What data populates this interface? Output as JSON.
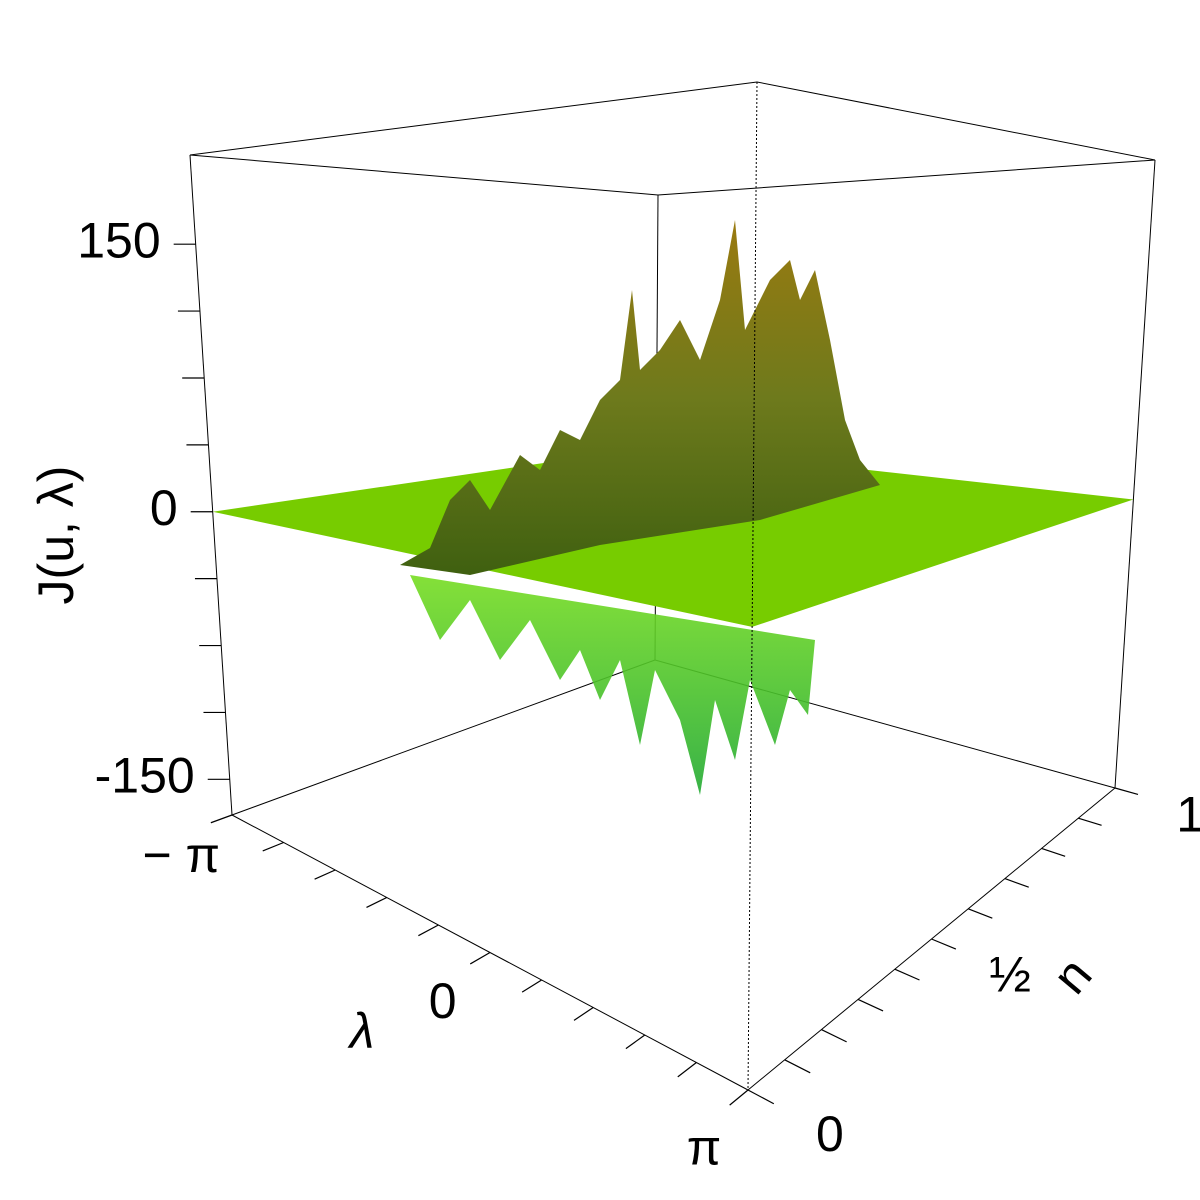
{
  "chart_data": {
    "type": "surface3d",
    "zlabel": "J(u, λ)",
    "xlabel": "u",
    "ylabel": "λ",
    "xlim": [
      0,
      1
    ],
    "xticks": [
      0,
      {
        "value": 0.5,
        "label": "½"
      },
      1
    ],
    "xminor": [
      0.1,
      0.2,
      0.3,
      0.4,
      0.6,
      0.7,
      0.8,
      0.9
    ],
    "ylim": [
      -3.14159,
      3.14159
    ],
    "yticks": [
      {
        "value": -3.14159,
        "label": "− π"
      },
      0,
      {
        "value": 3.14159,
        "label": "π"
      }
    ],
    "yminor": [
      -2.51327,
      -1.88496,
      -1.25664,
      -0.62832,
      0.62832,
      1.25664,
      1.88496,
      2.51327
    ],
    "zlim": [
      -170,
      200
    ],
    "zticks": [
      -150,
      0,
      150
    ],
    "zminor": [
      -112.5,
      -75,
      -37.5,
      37.5,
      75,
      112.5
    ],
    "color": "#77cc00"
  }
}
